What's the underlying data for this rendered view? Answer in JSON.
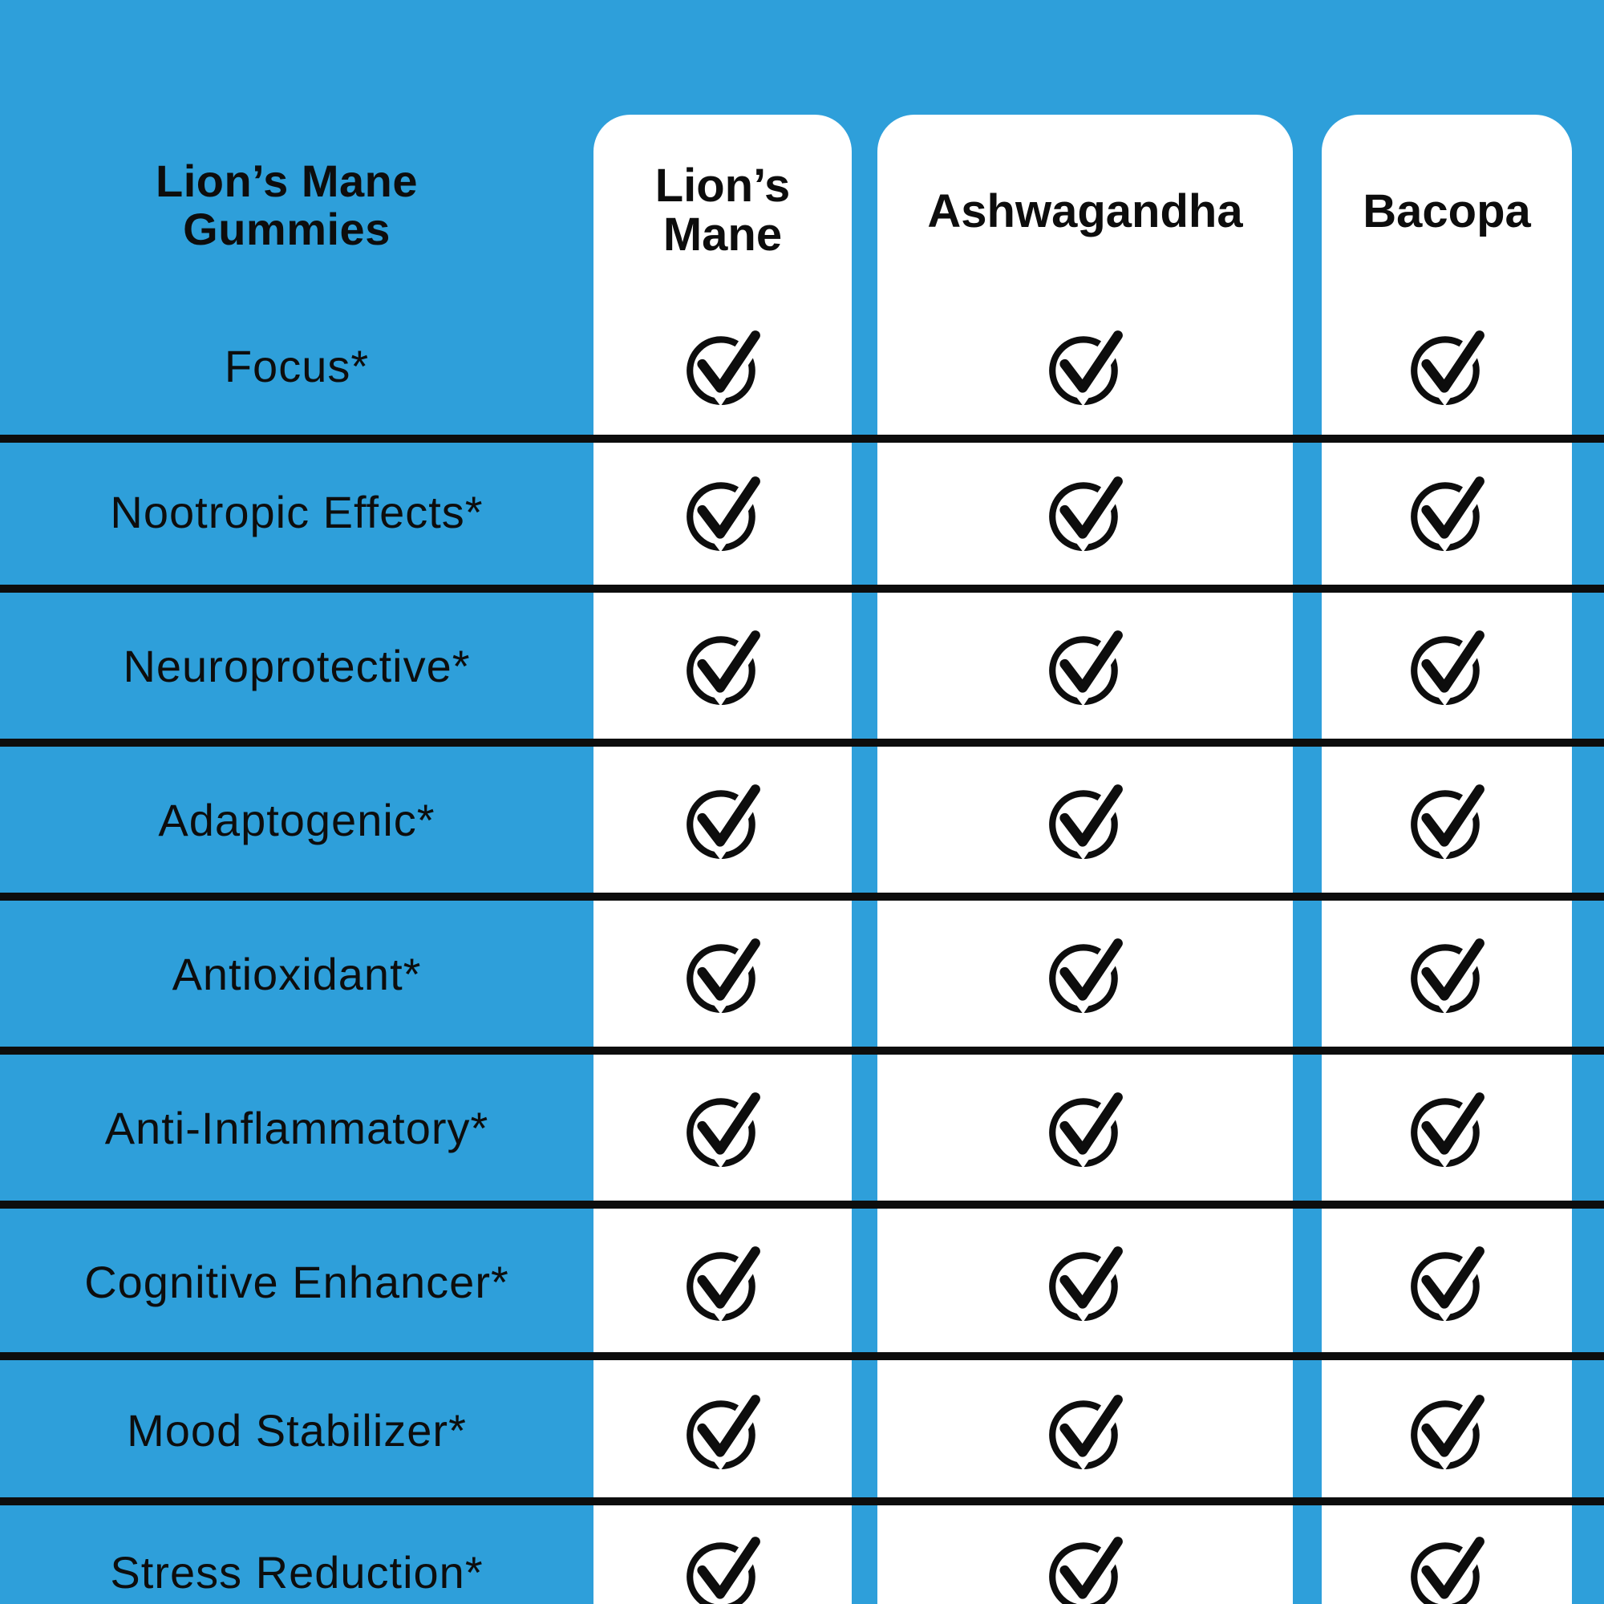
{
  "title": "Lion’s Mane Gummies",
  "columns": [
    {
      "label": "Lion’s Mane"
    },
    {
      "label": "Ashwagandha"
    },
    {
      "label": "Bacopa"
    }
  ],
  "rows": [
    {
      "label": "Focus*",
      "values": [
        true,
        true,
        true
      ]
    },
    {
      "label": "Nootropic Effects*",
      "values": [
        true,
        true,
        true
      ]
    },
    {
      "label": "Neuroprotective*",
      "values": [
        true,
        true,
        true
      ]
    },
    {
      "label": "Adaptogenic*",
      "values": [
        true,
        true,
        true
      ]
    },
    {
      "label": "Antioxidant*",
      "values": [
        true,
        true,
        true
      ]
    },
    {
      "label": "Anti-Inflammatory*",
      "values": [
        true,
        true,
        true
      ]
    },
    {
      "label": "Cognitive Enhancer*",
      "values": [
        true,
        true,
        true
      ]
    },
    {
      "label": "Mood Stabilizer*",
      "values": [
        true,
        true,
        true
      ]
    },
    {
      "label": "Stress Reduction*",
      "values": [
        true,
        true,
        true
      ]
    }
  ],
  "icons": {
    "check": "check-circle-icon"
  },
  "colors": {
    "background": "#2E9FDA",
    "card": "#FFFFFF",
    "ink": "#0D0D0D"
  },
  "chart_data": {
    "type": "table",
    "title": "Lion’s Mane Gummies",
    "columns": [
      "Lion’s Mane",
      "Ashwagandha",
      "Bacopa"
    ],
    "row_labels": [
      "Focus*",
      "Nootropic Effects*",
      "Neuroprotective*",
      "Adaptogenic*",
      "Antioxidant*",
      "Anti-Inflammatory*",
      "Cognitive Enhancer*",
      "Mood Stabilizer*",
      "Stress Reduction*"
    ],
    "values": [
      [
        true,
        true,
        true
      ],
      [
        true,
        true,
        true
      ],
      [
        true,
        true,
        true
      ],
      [
        true,
        true,
        true
      ],
      [
        true,
        true,
        true
      ],
      [
        true,
        true,
        true
      ],
      [
        true,
        true,
        true
      ],
      [
        true,
        true,
        true
      ],
      [
        true,
        true,
        true
      ]
    ],
    "legend_position": "none",
    "grid": "horizontal-lines"
  }
}
